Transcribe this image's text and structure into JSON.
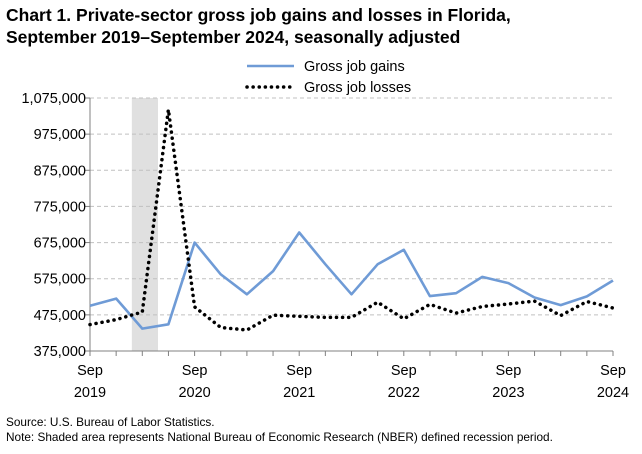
{
  "title_line1": "Chart 1. Private-sector gross job gains and losses in Florida,",
  "title_line2": "September 2019–September 2024, seasonally adjusted",
  "source": "Source: U.S. Bureau of Labor Statistics.",
  "note": "Note: Shaded area represents National Bureau of Economic Research (NBER) defined recession period.",
  "colors": {
    "gains": "#6f9bd6",
    "losses": "#000000",
    "recession": "#e0e0e0",
    "grid": "#c0c0c0"
  },
  "chart_data": {
    "type": "line",
    "title": "Chart 1. Private-sector gross job gains and losses in Florida, September 2019–September 2024, seasonally adjusted",
    "xlabel": "",
    "ylabel": "",
    "ylim": [
      375000,
      1075000
    ],
    "yticks": [
      375000,
      475000,
      575000,
      675000,
      775000,
      875000,
      975000,
      1075000
    ],
    "ytick_labels": [
      "375,000",
      "475,000",
      "575,000",
      "675,000",
      "775,000",
      "875,000",
      "975,000",
      "1,075,000"
    ],
    "x": [
      "Sep 2019",
      "Dec 2019",
      "Mar 2020",
      "Jun 2020",
      "Sep 2020",
      "Dec 2020",
      "Mar 2021",
      "Jun 2021",
      "Sep 2021",
      "Dec 2021",
      "Mar 2022",
      "Jun 2022",
      "Sep 2022",
      "Dec 2022",
      "Mar 2023",
      "Jun 2023",
      "Sep 2023",
      "Dec 2023",
      "Mar 2024",
      "Jun 2024",
      "Sep 2024"
    ],
    "xtick_labels": [
      {
        "month": "Sep",
        "year": "2019",
        "index": 0
      },
      {
        "month": "Sep",
        "year": "2020",
        "index": 4
      },
      {
        "month": "Sep",
        "year": "2021",
        "index": 8
      },
      {
        "month": "Sep",
        "year": "2022",
        "index": 12
      },
      {
        "month": "Sep",
        "year": "2023",
        "index": 16
      },
      {
        "month": "Sep",
        "year": "2024",
        "index": 20
      }
    ],
    "recession_period": {
      "start_index": 1.6,
      "end_index": 2.6
    },
    "series": [
      {
        "name": "Gross job gains",
        "style": "solid",
        "values": [
          500000,
          520000,
          437000,
          449000,
          675000,
          587000,
          532000,
          596000,
          703000,
          615000,
          532000,
          615000,
          655000,
          527000,
          535000,
          580000,
          563000,
          523000,
          502000,
          526000,
          570000
        ]
      },
      {
        "name": "Gross job losses",
        "style": "dotted",
        "values": [
          448000,
          462000,
          483000,
          1043000,
          497000,
          440000,
          433000,
          474000,
          471000,
          468000,
          468000,
          510000,
          464000,
          504000,
          480000,
          498000,
          505000,
          513000,
          473000,
          512000,
          494000
        ]
      }
    ],
    "legend_position": "top-center",
    "grid": true
  }
}
